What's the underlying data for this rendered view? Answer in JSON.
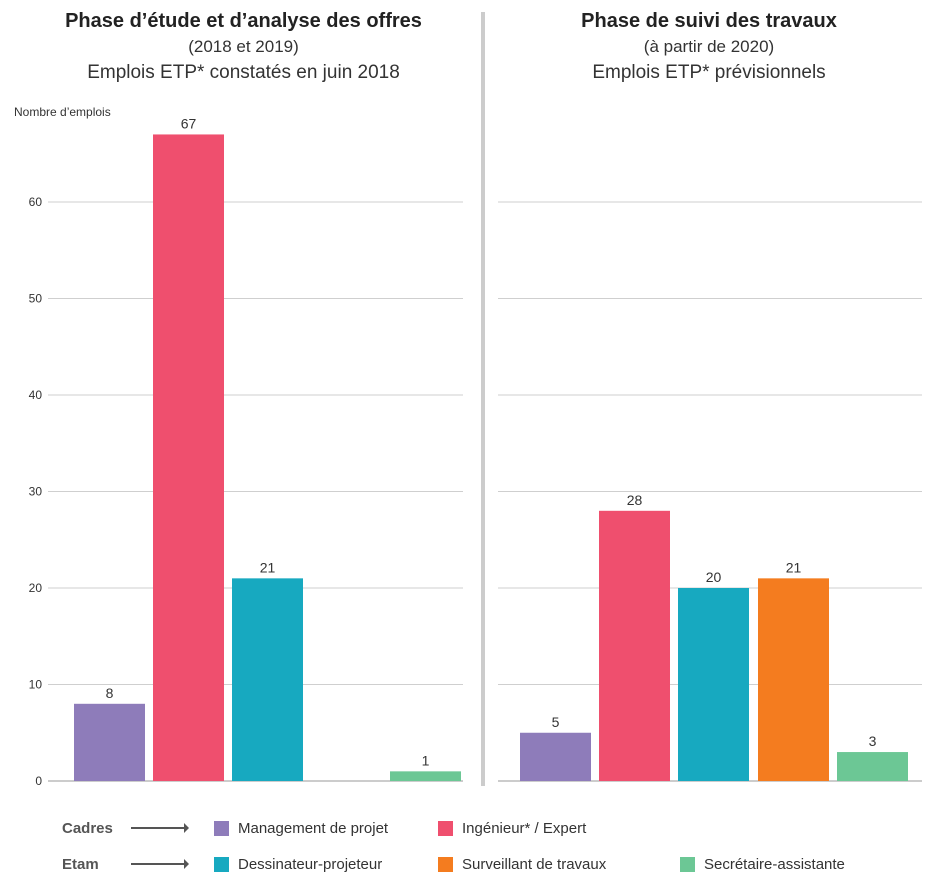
{
  "panels": [
    {
      "title": "Phase d’étude et d’analyse des offres",
      "subtitle": "(2018 et 2019)",
      "subtitle2": "Emplois ETP* constatés en juin 2018"
    },
    {
      "title": "Phase de suivi des travaux",
      "subtitle": "(à partir de 2020)",
      "subtitle2": "Emplois ETP* prévisionnels"
    }
  ],
  "colors": {
    "management": "#8e7cba",
    "ingenieur": "#ef4f6e",
    "dessinateur": "#17a9c0",
    "surveillant": "#f47c1f",
    "secretaire": "#6cc795",
    "grid": "#cfcfcf",
    "divider": "#cccccc"
  },
  "chart_data": {
    "type": "bar",
    "ylabel": "Nombre d’emplois",
    "ylim": [
      0,
      67
    ],
    "yticks": [
      0,
      10,
      20,
      30,
      40,
      50,
      60
    ],
    "grid": true,
    "series": [
      {
        "name": "Management de projet",
        "color_key": "management",
        "values": [
          8,
          5
        ]
      },
      {
        "name": "Ingénieur* / Expert",
        "color_key": "ingenieur",
        "values": [
          67,
          28
        ]
      },
      {
        "name": "Dessinateur-projeteur",
        "color_key": "dessinateur",
        "values": [
          21,
          20
        ]
      },
      {
        "name": "Surveillant de travaux",
        "color_key": "surveillant",
        "values": [
          null,
          21
        ]
      },
      {
        "name": "Secrétaire-assistante",
        "color_key": "secretaire",
        "values": [
          1,
          3
        ]
      }
    ]
  },
  "legend": {
    "rows": [
      {
        "label": "Cadres",
        "items": [
          "Management de projet",
          "Ingénieur* / Expert"
        ],
        "colors": [
          "management",
          "ingenieur"
        ]
      },
      {
        "label": "Etam",
        "items": [
          "Dessinateur-projeteur",
          "Surveillant de travaux",
          "Secrétaire-assistante"
        ],
        "colors": [
          "dessinateur",
          "surveillant",
          "secretaire"
        ]
      }
    ]
  }
}
